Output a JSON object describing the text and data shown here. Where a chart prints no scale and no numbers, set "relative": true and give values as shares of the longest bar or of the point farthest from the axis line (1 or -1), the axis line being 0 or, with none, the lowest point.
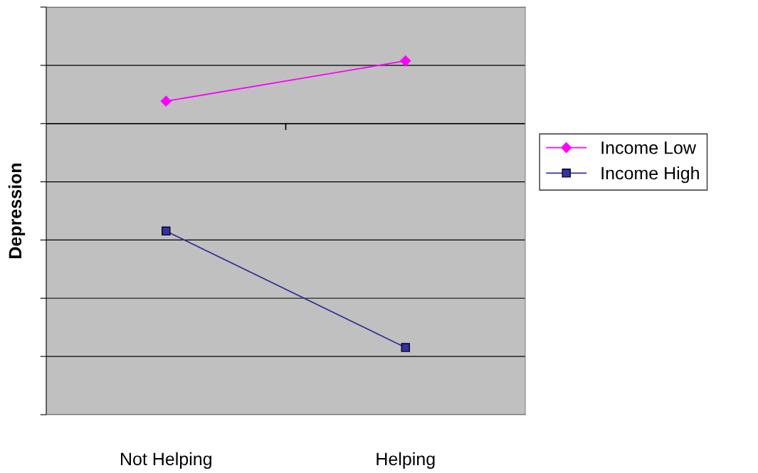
{
  "chart_data": {
    "type": "line",
    "relative": true,
    "ylabel": "Depression",
    "categories": [
      "Not Helping",
      "Helping"
    ],
    "series": [
      {
        "name": "Income Low",
        "color": "#ff00ff",
        "marker": "diamond",
        "values": [
          0.1,
          0.28
        ]
      },
      {
        "name": "Income High",
        "color": "#333399",
        "marker": "square",
        "values": [
          -0.48,
          -1
        ]
      }
    ],
    "grid": "y",
    "legend": "right"
  }
}
